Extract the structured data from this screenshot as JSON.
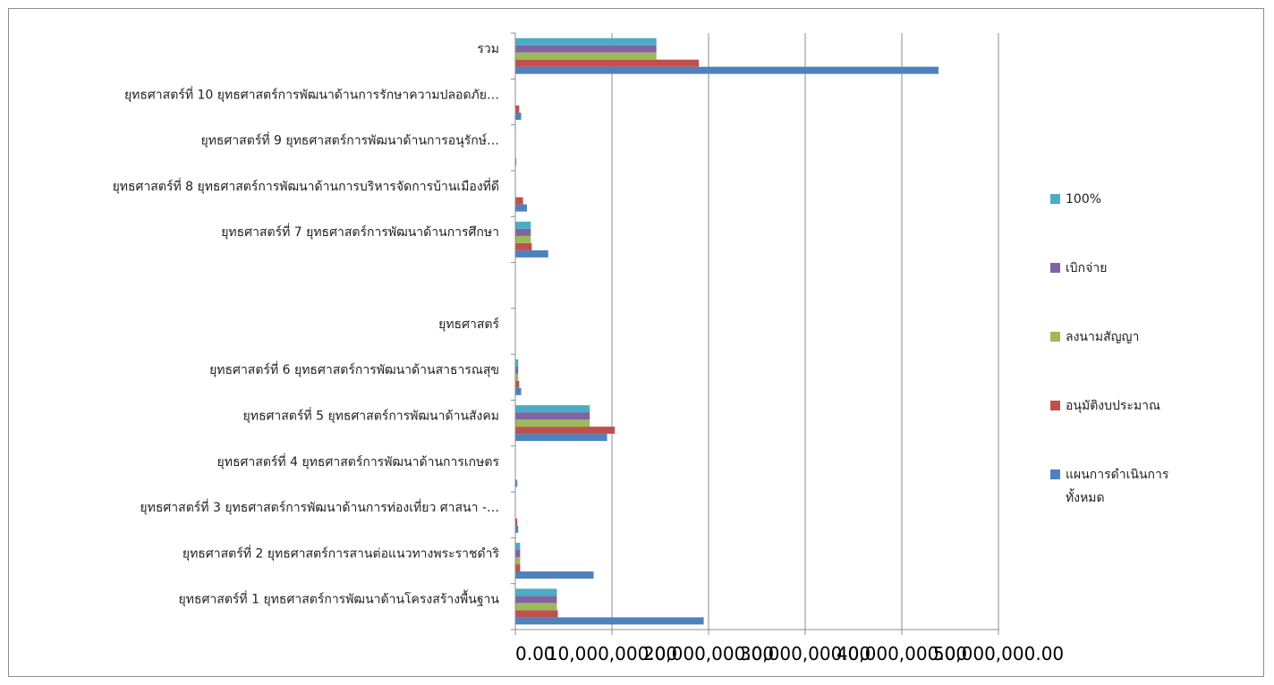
{
  "chart_data": {
    "type": "bar",
    "orientation": "horizontal",
    "categories": [
      "ยุทธศาสตร์ที่  1  ยุทธศาสตร์การพัฒนาด้านโครงสร้างพื้นฐาน",
      "ยุทธศาสตร์ที่ 2  ยุทธศาสตร์การสานต่อแนวทางพระราชดำริ",
      "ยุทธศาสตร์ที่ 3 ยุทธศาสตร์การพัฒนาด้านการท่องเที่ยว ศาสนา -…",
      "ยุทธศาสตร์ที่ 4 ยุทธศาสตร์การพัฒนาด้านการเกษตร",
      "ยุทธศาสตร์ที่ 5  ยุทธศาสตร์การพัฒนาด้านสังคม",
      "ยุทธศาสตร์ที่ 6 ยุทธศาสตร์การพัฒนาด้านสาธารณสุข",
      "ยุทธศาสตร์",
      "",
      "ยุทธศาสตร์ที่ 7 ยุทธศาสตร์การพัฒนาด้านการศึกษา",
      "ยุทธศาสตร์ที่ 8 ยุทธศาสตร์การพัฒนาด้านการบริหารจัดการบ้านเมืองที่ดี",
      "ยุทธศาสตร์ที่  9 ยุทธศาสตร์การพัฒนาด้านการอนุรักษ์…",
      "ยุทธศาสตร์ที่ 10  ยุทธศาสตร์การพัฒนาด้านการรักษาความปลอดภัย…",
      "รวม"
    ],
    "series": [
      {
        "name": "แผนการดำเนินการทั้งหมด",
        "color": "#4f81bd",
        "values": [
          19500000,
          8100000,
          300000,
          200000,
          9500000,
          600000,
          0,
          0,
          3400000,
          1200000,
          100000,
          600000,
          43800000
        ]
      },
      {
        "name": "อนุมัติงบประมาณ",
        "color": "#c0504d",
        "values": [
          4400000,
          500000,
          200000,
          0,
          10300000,
          400000,
          0,
          0,
          1700000,
          800000,
          0,
          400000,
          19000000
        ]
      },
      {
        "name": "ลงนามสัญญา",
        "color": "#9bbb59",
        "values": [
          4300000,
          500000,
          0,
          0,
          7700000,
          300000,
          0,
          0,
          1600000,
          0,
          0,
          0,
          14600000
        ]
      },
      {
        "name": "เบิกจ่าย",
        "color": "#8064a2",
        "values": [
          4300000,
          500000,
          0,
          0,
          7700000,
          300000,
          0,
          0,
          1600000,
          0,
          0,
          0,
          14600000
        ]
      },
      {
        "name": "100%",
        "color": "#4bacc6",
        "values": [
          4300000,
          500000,
          0,
          0,
          7700000,
          300000,
          0,
          0,
          1600000,
          0,
          0,
          0,
          14600000
        ]
      }
    ],
    "legend_order": [
      "100%",
      "เบิกจ่าย",
      "ลงนามสัญญา",
      "อนุมัติงบประมาณ",
      "แผนการดำเนินการทั้งหมด"
    ],
    "legend_lines": [
      [
        "100%"
      ],
      [
        "เบิกจ่าย"
      ],
      [
        "ลงนามสัญญา"
      ],
      [
        "อนุมัติงบประมาณ"
      ],
      [
        "แผนการดำเนินการ",
        "ทั้งหมด"
      ]
    ],
    "xlim": [
      0,
      50000000
    ],
    "x_ticks": [
      0,
      10000000,
      20000000,
      30000000,
      40000000,
      50000000
    ],
    "x_tick_labels": [
      "0.00",
      "10,000,000.00",
      "20,000,000.00",
      "30,000,000.00",
      "40,000,000.00",
      "50,000,000.00"
    ],
    "grid": "vertical",
    "legend_position": "right"
  }
}
